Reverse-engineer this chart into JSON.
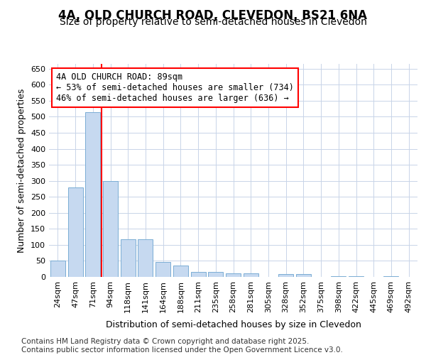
{
  "title_line1": "4A, OLD CHURCH ROAD, CLEVEDON, BS21 6NA",
  "title_line2": "Size of property relative to semi-detached houses in Clevedon",
  "xlabel": "Distribution of semi-detached houses by size in Clevedon",
  "ylabel": "Number of semi-detached properties",
  "categories": [
    "24sqm",
    "47sqm",
    "71sqm",
    "94sqm",
    "118sqm",
    "141sqm",
    "164sqm",
    "188sqm",
    "211sqm",
    "235sqm",
    "258sqm",
    "281sqm",
    "305sqm",
    "328sqm",
    "352sqm",
    "375sqm",
    "398sqm",
    "422sqm",
    "445sqm",
    "469sqm",
    "492sqm"
  ],
  "values": [
    52,
    280,
    515,
    300,
    118,
    118,
    47,
    35,
    15,
    15,
    12,
    12,
    0,
    8,
    8,
    0,
    3,
    2,
    0,
    2,
    0
  ],
  "bar_color": "#c6d9f0",
  "bar_edge_color": "#7aadd4",
  "red_line_x": 2.5,
  "annotation_text": "4A OLD CHURCH ROAD: 89sqm\n← 53% of semi-detached houses are smaller (734)\n46% of semi-detached houses are larger (636) →",
  "ylim": [
    0,
    665
  ],
  "yticks": [
    0,
    50,
    100,
    150,
    200,
    250,
    300,
    350,
    400,
    450,
    500,
    550,
    600,
    650
  ],
  "bg_color": "#ffffff",
  "plot_bg_color": "#ffffff",
  "grid_color": "#c8d4e8",
  "footer": "Contains HM Land Registry data © Crown copyright and database right 2025.\nContains public sector information licensed under the Open Government Licence v3.0.",
  "title_fontsize": 12,
  "subtitle_fontsize": 10,
  "axis_label_fontsize": 9,
  "tick_fontsize": 8,
  "annotation_fontsize": 8.5,
  "footer_fontsize": 7.5
}
